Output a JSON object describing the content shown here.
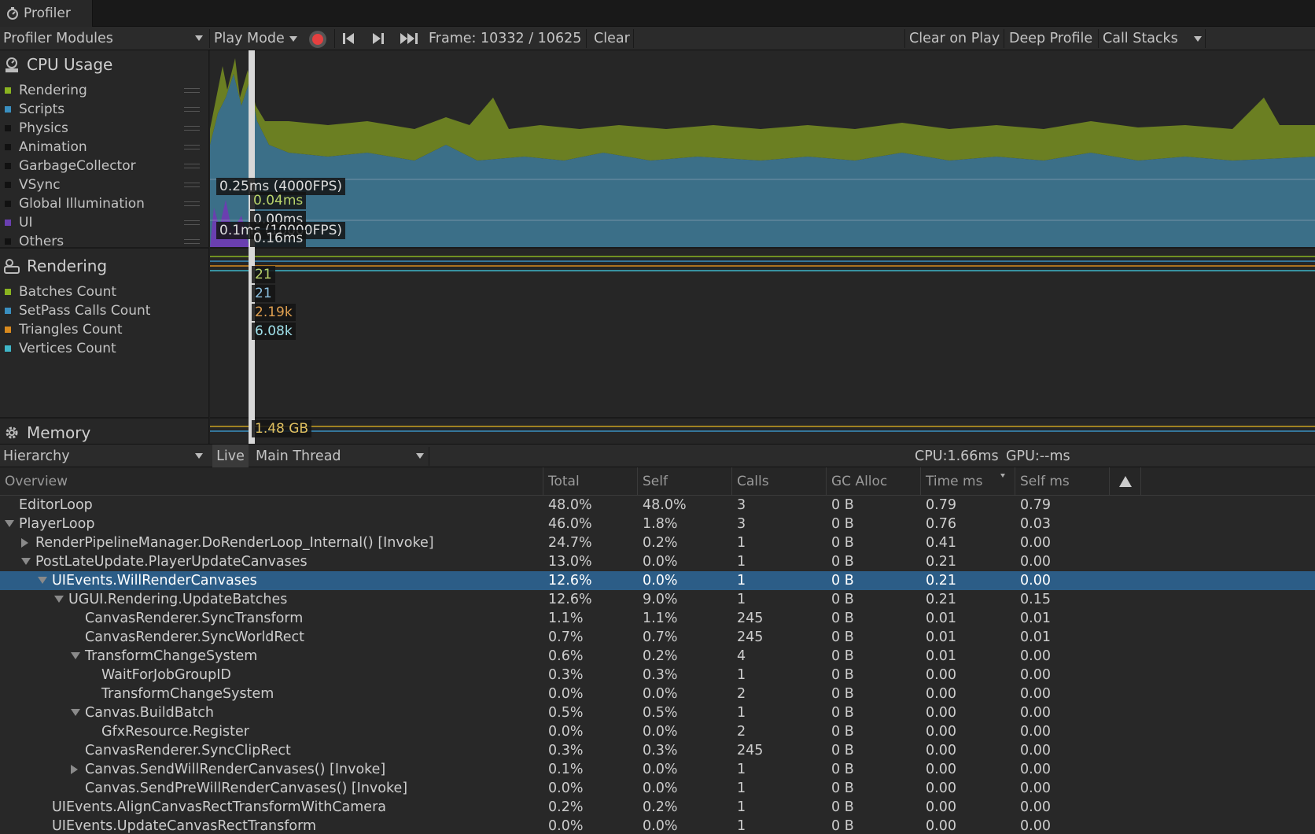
{
  "window": {
    "tab_title": "Profiler"
  },
  "toolbar": {
    "modules_label": "Profiler Modules",
    "play_mode": "Play Mode",
    "frame": "Frame: 10332 / 10625",
    "clear": "Clear",
    "clear_on_play": "Clear on Play",
    "deep_profile": "Deep Profile",
    "call_stacks": "Call Stacks"
  },
  "cpu_module": {
    "title": "CPU Usage",
    "legend": [
      {
        "label": "Rendering",
        "color": "#8ab420"
      },
      {
        "label": "Scripts",
        "color": "#3a8fc0"
      },
      {
        "label": "Physics",
        "color": "#111111"
      },
      {
        "label": "Animation",
        "color": "#111111"
      },
      {
        "label": "GarbageCollector",
        "color": "#111111"
      },
      {
        "label": "VSync",
        "color": "#111111"
      },
      {
        "label": "Global Illumination",
        "color": "#111111"
      },
      {
        "label": "UI",
        "color": "#6a3fb0"
      },
      {
        "label": "Others",
        "color": "#111111"
      }
    ],
    "tooltips": {
      "line1": "0.25ms (4000FPS)",
      "v1": "0.04ms",
      "v2": "0.00ms",
      "line2": "0.1ms (10000FPS)",
      "v3": "0.16ms"
    }
  },
  "rendering_module": {
    "title": "Rendering",
    "legend": [
      {
        "label": "Batches Count",
        "color": "#8ab420"
      },
      {
        "label": "SetPass Calls Count",
        "color": "#3a8fc0"
      },
      {
        "label": "Triangles Count",
        "color": "#d98a1e"
      },
      {
        "label": "Vertices Count",
        "color": "#3fb6c8"
      }
    ],
    "tooltips": {
      "a": "21",
      "b": "21",
      "c": "2.19k",
      "d": "6.08k"
    }
  },
  "memory_module": {
    "title": "Memory",
    "tooltip": "1.48 GB"
  },
  "hierarchy_bar": {
    "view": "Hierarchy",
    "live": "Live",
    "thread": "Main Thread",
    "cpu": "CPU:1.66ms",
    "gpu": "GPU:--ms"
  },
  "columns": [
    "Overview",
    "Total",
    "Self",
    "Calls",
    "GC Alloc",
    "Time ms",
    "Self ms"
  ],
  "rows": [
    {
      "name": "EditorLoop",
      "depth": 0,
      "fold": "none",
      "total": "48.0%",
      "self": "48.0%",
      "calls": "3",
      "gc": "0 B",
      "time": "0.79",
      "selfms": "0.79"
    },
    {
      "name": "PlayerLoop",
      "depth": 0,
      "fold": "open",
      "total": "46.0%",
      "self": "1.8%",
      "calls": "3",
      "gc": "0 B",
      "time": "0.76",
      "selfms": "0.03"
    },
    {
      "name": "RenderPipelineManager.DoRenderLoop_Internal() [Invoke]",
      "depth": 1,
      "fold": "closed",
      "total": "24.7%",
      "self": "0.2%",
      "calls": "1",
      "gc": "0 B",
      "time": "0.41",
      "selfms": "0.00"
    },
    {
      "name": "PostLateUpdate.PlayerUpdateCanvases",
      "depth": 1,
      "fold": "open",
      "total": "13.0%",
      "self": "0.0%",
      "calls": "1",
      "gc": "0 B",
      "time": "0.21",
      "selfms": "0.00"
    },
    {
      "name": "UIEvents.WillRenderCanvases",
      "depth": 2,
      "fold": "open",
      "total": "12.6%",
      "self": "0.0%",
      "calls": "1",
      "gc": "0 B",
      "time": "0.21",
      "selfms": "0.00",
      "selected": true
    },
    {
      "name": "UGUI.Rendering.UpdateBatches",
      "depth": 3,
      "fold": "open",
      "total": "12.6%",
      "self": "9.0%",
      "calls": "1",
      "gc": "0 B",
      "time": "0.21",
      "selfms": "0.15"
    },
    {
      "name": "CanvasRenderer.SyncTransform",
      "depth": 4,
      "fold": "none",
      "total": "1.1%",
      "self": "1.1%",
      "calls": "245",
      "gc": "0 B",
      "time": "0.01",
      "selfms": "0.01"
    },
    {
      "name": "CanvasRenderer.SyncWorldRect",
      "depth": 4,
      "fold": "none",
      "total": "0.7%",
      "self": "0.7%",
      "calls": "245",
      "gc": "0 B",
      "time": "0.01",
      "selfms": "0.01"
    },
    {
      "name": "TransformChangeSystem",
      "depth": 4,
      "fold": "open",
      "total": "0.6%",
      "self": "0.2%",
      "calls": "4",
      "gc": "0 B",
      "time": "0.01",
      "selfms": "0.00"
    },
    {
      "name": "WaitForJobGroupID",
      "depth": 5,
      "fold": "none",
      "total": "0.3%",
      "self": "0.3%",
      "calls": "1",
      "gc": "0 B",
      "time": "0.00",
      "selfms": "0.00"
    },
    {
      "name": "TransformChangeSystem",
      "depth": 5,
      "fold": "none",
      "total": "0.0%",
      "self": "0.0%",
      "calls": "2",
      "gc": "0 B",
      "time": "0.00",
      "selfms": "0.00"
    },
    {
      "name": "Canvas.BuildBatch",
      "depth": 4,
      "fold": "open",
      "total": "0.5%",
      "self": "0.5%",
      "calls": "1",
      "gc": "0 B",
      "time": "0.00",
      "selfms": "0.00"
    },
    {
      "name": "GfxResource.Register",
      "depth": 5,
      "fold": "none",
      "total": "0.0%",
      "self": "0.0%",
      "calls": "2",
      "gc": "0 B",
      "time": "0.00",
      "selfms": "0.00"
    },
    {
      "name": "CanvasRenderer.SyncClipRect",
      "depth": 4,
      "fold": "none",
      "total": "0.3%",
      "self": "0.3%",
      "calls": "245",
      "gc": "0 B",
      "time": "0.00",
      "selfms": "0.00"
    },
    {
      "name": "Canvas.SendWillRenderCanvases() [Invoke]",
      "depth": 4,
      "fold": "closed",
      "total": "0.1%",
      "self": "0.0%",
      "calls": "1",
      "gc": "0 B",
      "time": "0.00",
      "selfms": "0.00"
    },
    {
      "name": "Canvas.SendPreWillRenderCanvases() [Invoke]",
      "depth": 4,
      "fold": "none",
      "total": "0.0%",
      "self": "0.0%",
      "calls": "1",
      "gc": "0 B",
      "time": "0.00",
      "selfms": "0.00"
    },
    {
      "name": "UIEvents.AlignCanvasRectTransformWithCamera",
      "depth": 2,
      "fold": "none",
      "total": "0.2%",
      "self": "0.2%",
      "calls": "1",
      "gc": "0 B",
      "time": "0.00",
      "selfms": "0.00"
    },
    {
      "name": "UIEvents.UpdateCanvasRectTransform",
      "depth": 2,
      "fold": "none",
      "total": "0.0%",
      "self": "0.0%",
      "calls": "1",
      "gc": "0 B",
      "time": "0.00",
      "selfms": "0.00"
    }
  ]
}
